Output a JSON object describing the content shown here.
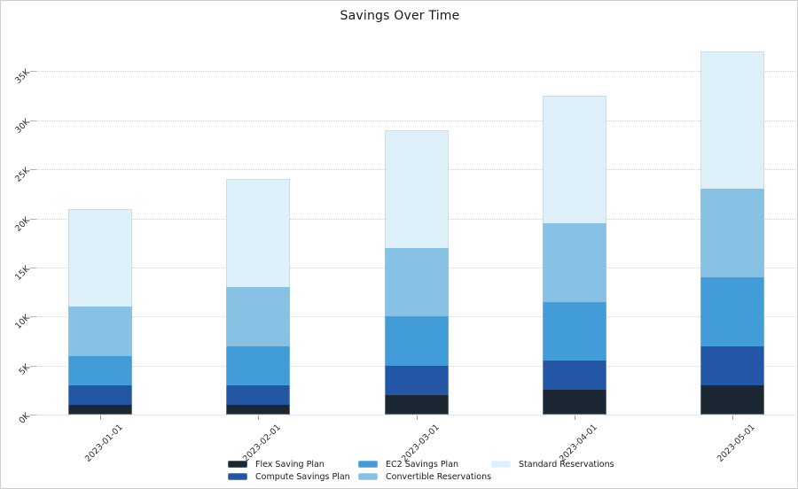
{
  "window": {
    "title": "Savings Over Time"
  },
  "chart_data": {
    "type": "bar",
    "stacked": true,
    "title": "Savings Over Time",
    "categories": [
      "2023-01-01",
      "2023-02-01",
      "2023-03-01",
      "2023-04-01",
      "2023-05-01"
    ],
    "series": [
      {
        "name": "Flex Saving Plan",
        "color": "#1c2734",
        "values": [
          1000,
          1000,
          2000,
          2500,
          3000
        ]
      },
      {
        "name": "Compute Savings Plan",
        "color": "#2356a5",
        "values": [
          2000,
          2000,
          3000,
          3000,
          4000
        ]
      },
      {
        "name": "EC2 Savings Plan",
        "color": "#429cd8",
        "values": [
          3000,
          4000,
          5000,
          6000,
          7000
        ]
      },
      {
        "name": "Convertible Reservations",
        "color": "#87c1e3",
        "values": [
          5000,
          6000,
          7000,
          8000,
          9000
        ]
      },
      {
        "name": "Standard Reservations",
        "color": "#def0fa",
        "values": [
          10000,
          11000,
          12000,
          13000,
          14000
        ]
      }
    ],
    "totals": [
      21000,
      24000,
      29000,
      32500,
      37000
    ],
    "y_ticks": [
      "0K",
      "5K",
      "10K",
      "15K",
      "20K",
      "25K",
      "30K",
      "35K"
    ],
    "y_tick_values": [
      0,
      5000,
      10000,
      15000,
      20000,
      25000,
      30000,
      35000
    ],
    "ylim": [
      0,
      38500
    ],
    "grid": "horizontal-dotted",
    "legend_position": "bottom"
  }
}
